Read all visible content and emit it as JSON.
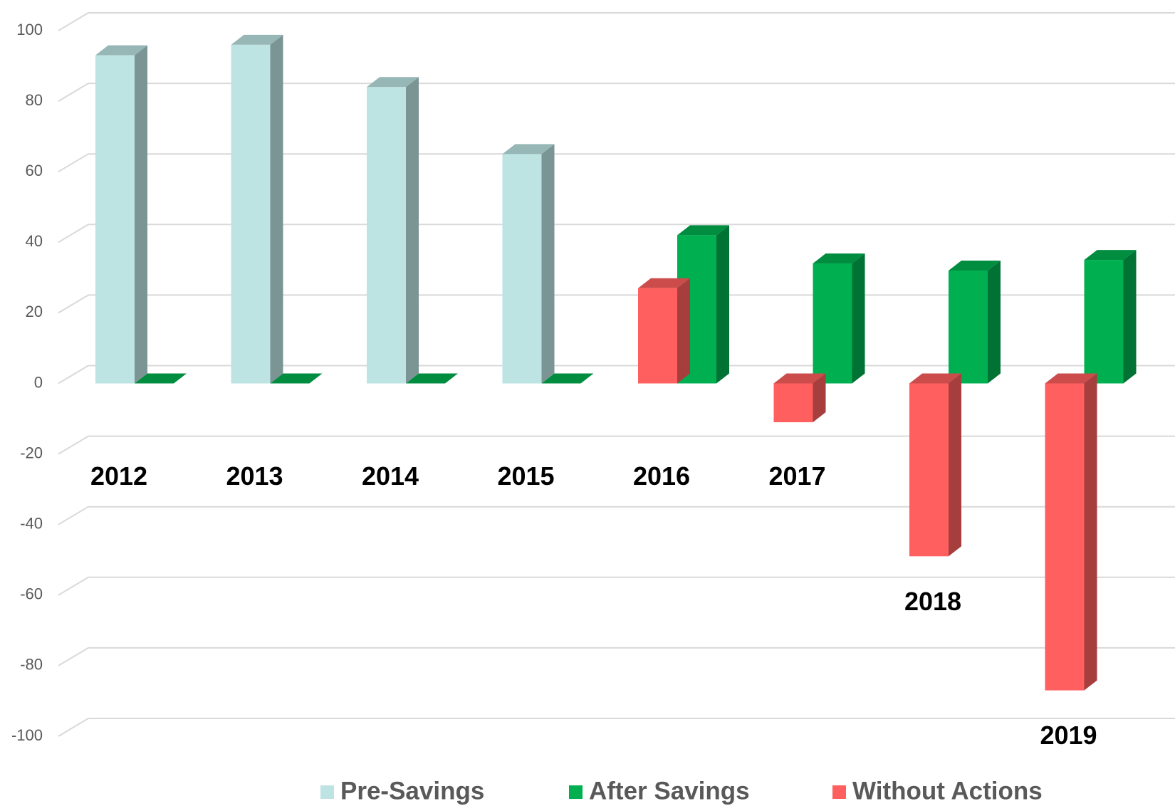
{
  "chart_data": {
    "type": "bar3d",
    "categories": [
      "2012",
      "2013",
      "2014",
      "2015",
      "2016",
      "2017",
      "2018",
      "2019"
    ],
    "series": [
      {
        "name": "Pre-Savings",
        "color": "#bde3e3",
        "values": [
          93,
          96,
          84,
          65,
          null,
          null,
          null,
          null
        ]
      },
      {
        "name": "After Savings",
        "color": "#00b050",
        "values": [
          0,
          0,
          0,
          0,
          42,
          34,
          32,
          35
        ]
      },
      {
        "name": "Without Actions",
        "color": "#ff5f5f",
        "values": [
          null,
          null,
          null,
          null,
          27,
          -11,
          -49,
          -87
        ]
      }
    ],
    "ylim": [
      -100,
      100
    ],
    "yticks": [
      -100,
      -80,
      -60,
      -40,
      -20,
      0,
      20,
      40,
      60,
      80,
      100
    ],
    "grid": true
  }
}
